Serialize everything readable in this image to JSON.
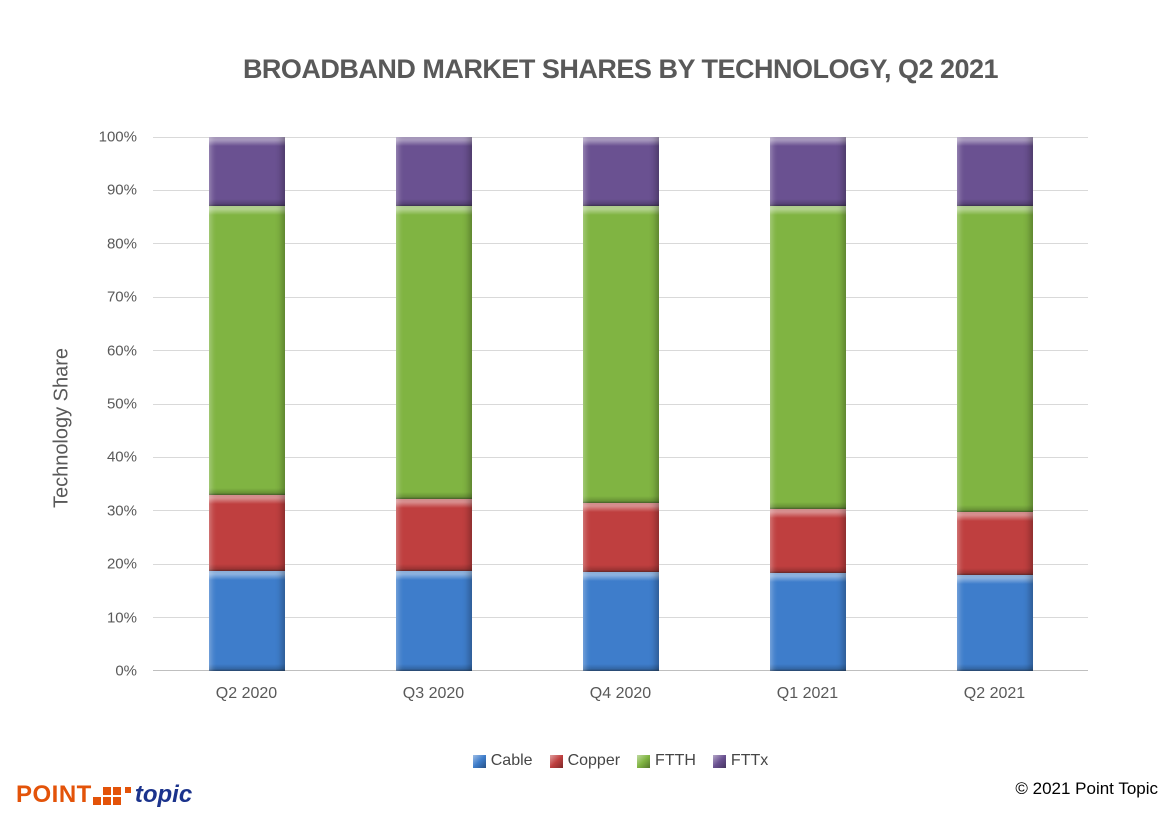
{
  "title": "BROADBAND MARKET SHARES BY TECHNOLOGY, Q2 2021",
  "colors": {
    "title_text": "#595959",
    "axis_text": "#595959",
    "legend_text": "#464646",
    "gridline": "#D9D9D9",
    "axis_line": "#BFBFBF",
    "background": "#FFFFFF",
    "cable": "#3E7DCB",
    "copper": "#BF3F3F",
    "ftth": "#80B442",
    "fttx": "#6A5191",
    "logo_orange": "#E35309",
    "logo_blue": "#1B338C"
  },
  "chart_data": {
    "type": "bar",
    "stacked": true,
    "title": "BROADBAND MARKET SHARES BY TECHNOLOGY, Q2 2021",
    "xlabel": "",
    "ylabel": "Technology Share",
    "ylim": [
      0,
      100
    ],
    "y_tick_labels": [
      "0%",
      "10%",
      "20%",
      "30%",
      "40%",
      "50%",
      "60%",
      "70%",
      "80%",
      "90%",
      "100%"
    ],
    "grid": true,
    "legend_position": "bottom",
    "categories": [
      "Q2 2020",
      "Q3 2020",
      "Q4 2020",
      "Q1 2021",
      "Q2 2021"
    ],
    "series": [
      {
        "name": "Cable",
        "color": "#3E7DCB",
        "values": [
          18.8,
          18.7,
          18.5,
          18.4,
          18.0
        ]
      },
      {
        "name": "Copper",
        "color": "#BF3F3F",
        "values": [
          14.2,
          13.5,
          13.0,
          12.0,
          11.7
        ]
      },
      {
        "name": "FTTH",
        "color": "#80B442",
        "values": [
          54.0,
          54.8,
          55.5,
          56.6,
          57.3
        ]
      },
      {
        "name": "FTTx",
        "color": "#6A5191",
        "values": [
          13.0,
          13.0,
          13.0,
          13.0,
          13.0
        ]
      }
    ]
  },
  "footer": {
    "logo_point": "POINT",
    "logo_topic": "topic",
    "logo_dots": [
      [
        0,
        1,
        1,
        2
      ],
      [
        1,
        1,
        1,
        0
      ]
    ],
    "copyright": "© 2021 Point Topic"
  }
}
